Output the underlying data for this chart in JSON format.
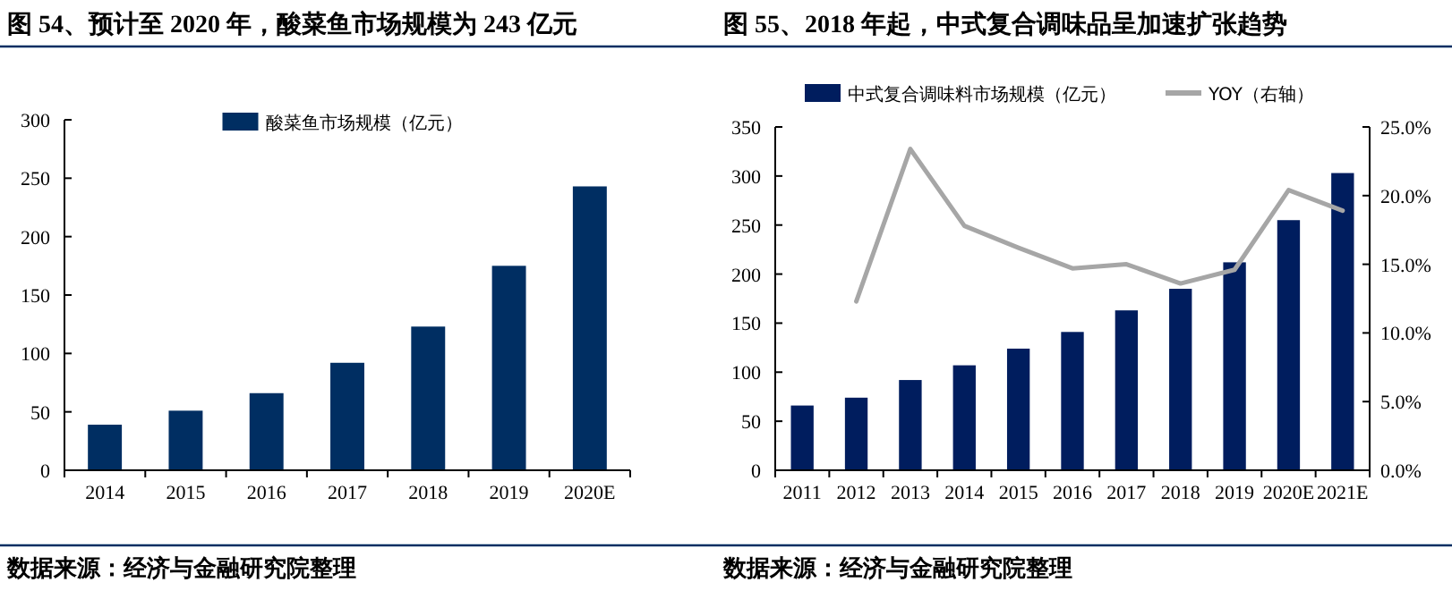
{
  "chart_data": [
    {
      "type": "bar",
      "title": "图 54、预计至 2020 年，酸菜鱼市场规模为 243 亿元",
      "categories": [
        "2014",
        "2015",
        "2016",
        "2017",
        "2018",
        "2019",
        "2020E"
      ],
      "series": [
        {
          "name": "酸菜鱼市场规模（亿元）",
          "color": "#002e62",
          "values": [
            39,
            51,
            66,
            92,
            123,
            175,
            243
          ]
        }
      ],
      "ylim": [
        0,
        300
      ],
      "yticks": [
        0,
        50,
        100,
        150,
        200,
        250,
        300
      ],
      "grid": false,
      "legend": "top",
      "annotations": [
        "数据来源：经济与金融研究院整理"
      ]
    },
    {
      "type": "bar",
      "title": "图 55、2018 年起，中式复合调味品呈加速扩张趋势",
      "categories": [
        "2011",
        "2012",
        "2013",
        "2014",
        "2015",
        "2016",
        "2017",
        "2018",
        "2019",
        "2020E",
        "2021E"
      ],
      "series": [
        {
          "name": "中式复合调味料市场规模（亿元）",
          "color": "#001d5e",
          "values": [
            66,
            74,
            92,
            107,
            124,
            141,
            163,
            185,
            212,
            255,
            303
          ]
        },
        {
          "name": "YOY（右轴）",
          "type": "line",
          "axis": "y2",
          "color": "#a6a6a6",
          "values": [
            null,
            12.3,
            23.4,
            17.8,
            16.2,
            14.7,
            15.0,
            13.6,
            14.6,
            20.4,
            18.9
          ]
        }
      ],
      "ylim": [
        0,
        350
      ],
      "yticks": [
        0,
        50,
        100,
        150,
        200,
        250,
        300,
        350
      ],
      "y2lim": [
        0,
        25
      ],
      "y2ticks": [
        {
          "value": 0,
          "label": "0.0%"
        },
        {
          "value": 5,
          "label": "5.0%"
        },
        {
          "value": 10,
          "label": "10.0%"
        },
        {
          "value": 15,
          "label": "15.0%"
        },
        {
          "value": 20,
          "label": "20.0%"
        },
        {
          "value": 25,
          "label": "25.0%"
        }
      ],
      "grid": false,
      "legend": "top",
      "annotations": [
        "数据来源：经济与金融研究院整理"
      ]
    }
  ]
}
